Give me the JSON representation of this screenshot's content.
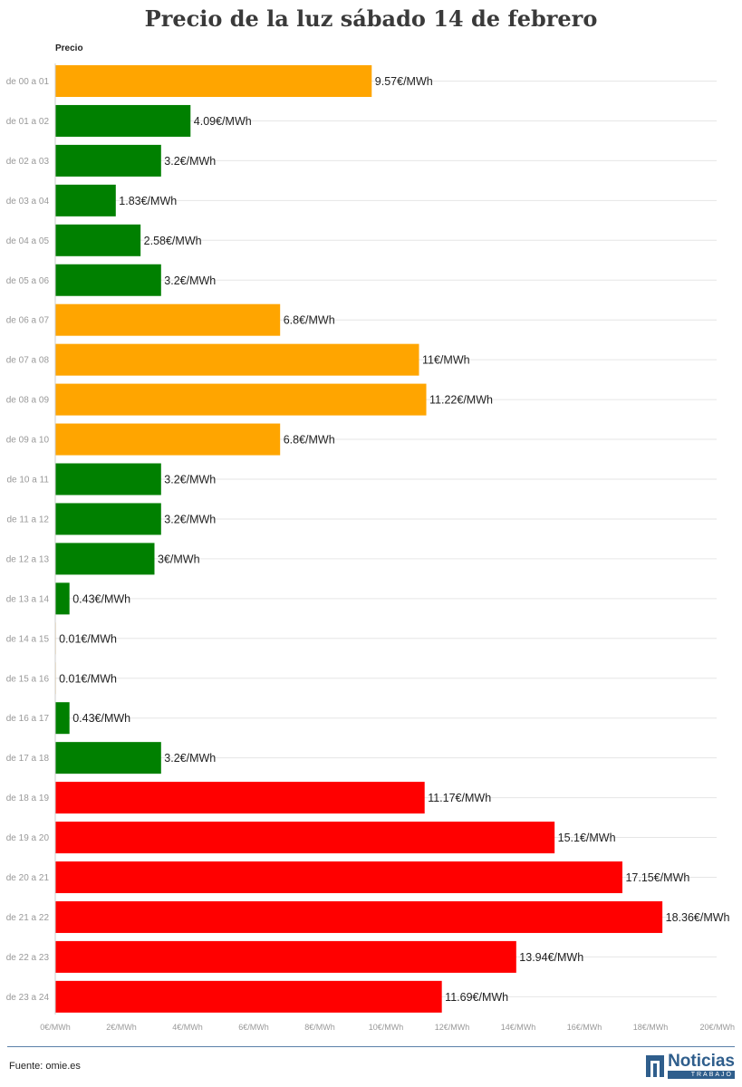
{
  "chart_data": {
    "type": "bar",
    "orientation": "horizontal",
    "title": "Precio de la luz sábado 14 de febrero",
    "series_title": "Precio",
    "categories": [
      "de 00 a 01",
      "de 01 a 02",
      "de 02 a 03",
      "de 03 a 04",
      "de 04 a 05",
      "de 05 a 06",
      "de 06 a 07",
      "de 07 a 08",
      "de 08 a 09",
      "de 09 a 10",
      "de 10 a 11",
      "de 11 a 12",
      "de 12 a 13",
      "de 13 a 14",
      "de 14 a 15",
      "de 15 a 16",
      "de 16 a 17",
      "de 17 a 18",
      "de 18 a 19",
      "de 19 a 20",
      "de 20 a 21",
      "de 21 a 22",
      "de 22 a 23",
      "de 23 a 24"
    ],
    "values": [
      9.57,
      4.09,
      3.2,
      1.83,
      2.58,
      3.2,
      6.8,
      11,
      11.22,
      6.8,
      3.2,
      3.2,
      3,
      0.43,
      0.01,
      0.01,
      0.43,
      3.2,
      11.17,
      15.1,
      17.15,
      18.36,
      13.94,
      11.69
    ],
    "value_labels": [
      "9.57€/MWh",
      "4.09€/MWh",
      "3.2€/MWh",
      "1.83€/MWh",
      "2.58€/MWh",
      "3.2€/MWh",
      "6.8€/MWh",
      "11€/MWh",
      "11.22€/MWh",
      "6.8€/MWh",
      "3.2€/MWh",
      "3.2€/MWh",
      "3€/MWh",
      "0.43€/MWh",
      "0.01€/MWh",
      "0.01€/MWh",
      "0.43€/MWh",
      "3.2€/MWh",
      "11.17€/MWh",
      "15.1€/MWh",
      "17.15€/MWh",
      "18.36€/MWh",
      "13.94€/MWh",
      "11.69€/MWh"
    ],
    "bar_colors": [
      "orange",
      "green",
      "green",
      "green",
      "green",
      "green",
      "orange",
      "orange",
      "orange",
      "orange",
      "green",
      "green",
      "green",
      "green",
      "orange",
      "orange",
      "green",
      "green",
      "red",
      "red",
      "red",
      "red",
      "red",
      "red"
    ],
    "palette": {
      "green": "#008000",
      "orange": "#ffa500",
      "red": "#ff0000"
    },
    "xlim": [
      0,
      20
    ],
    "x_ticks": [
      0,
      2,
      4,
      6,
      8,
      10,
      12,
      14,
      16,
      18,
      20
    ],
    "x_tick_labels": [
      "0€/MWh",
      "2€/MWh",
      "4€/MWh",
      "6€/MWh",
      "8€/MWh",
      "10€/MWh",
      "12€/MWh",
      "14€/MWh",
      "16€/MWh",
      "18€/MWh",
      "20€/MWh"
    ],
    "grid": true
  },
  "footer": {
    "source": "Fuente: omie.es",
    "logo_main": "Noticias",
    "logo_sub": "TRABAJO"
  }
}
